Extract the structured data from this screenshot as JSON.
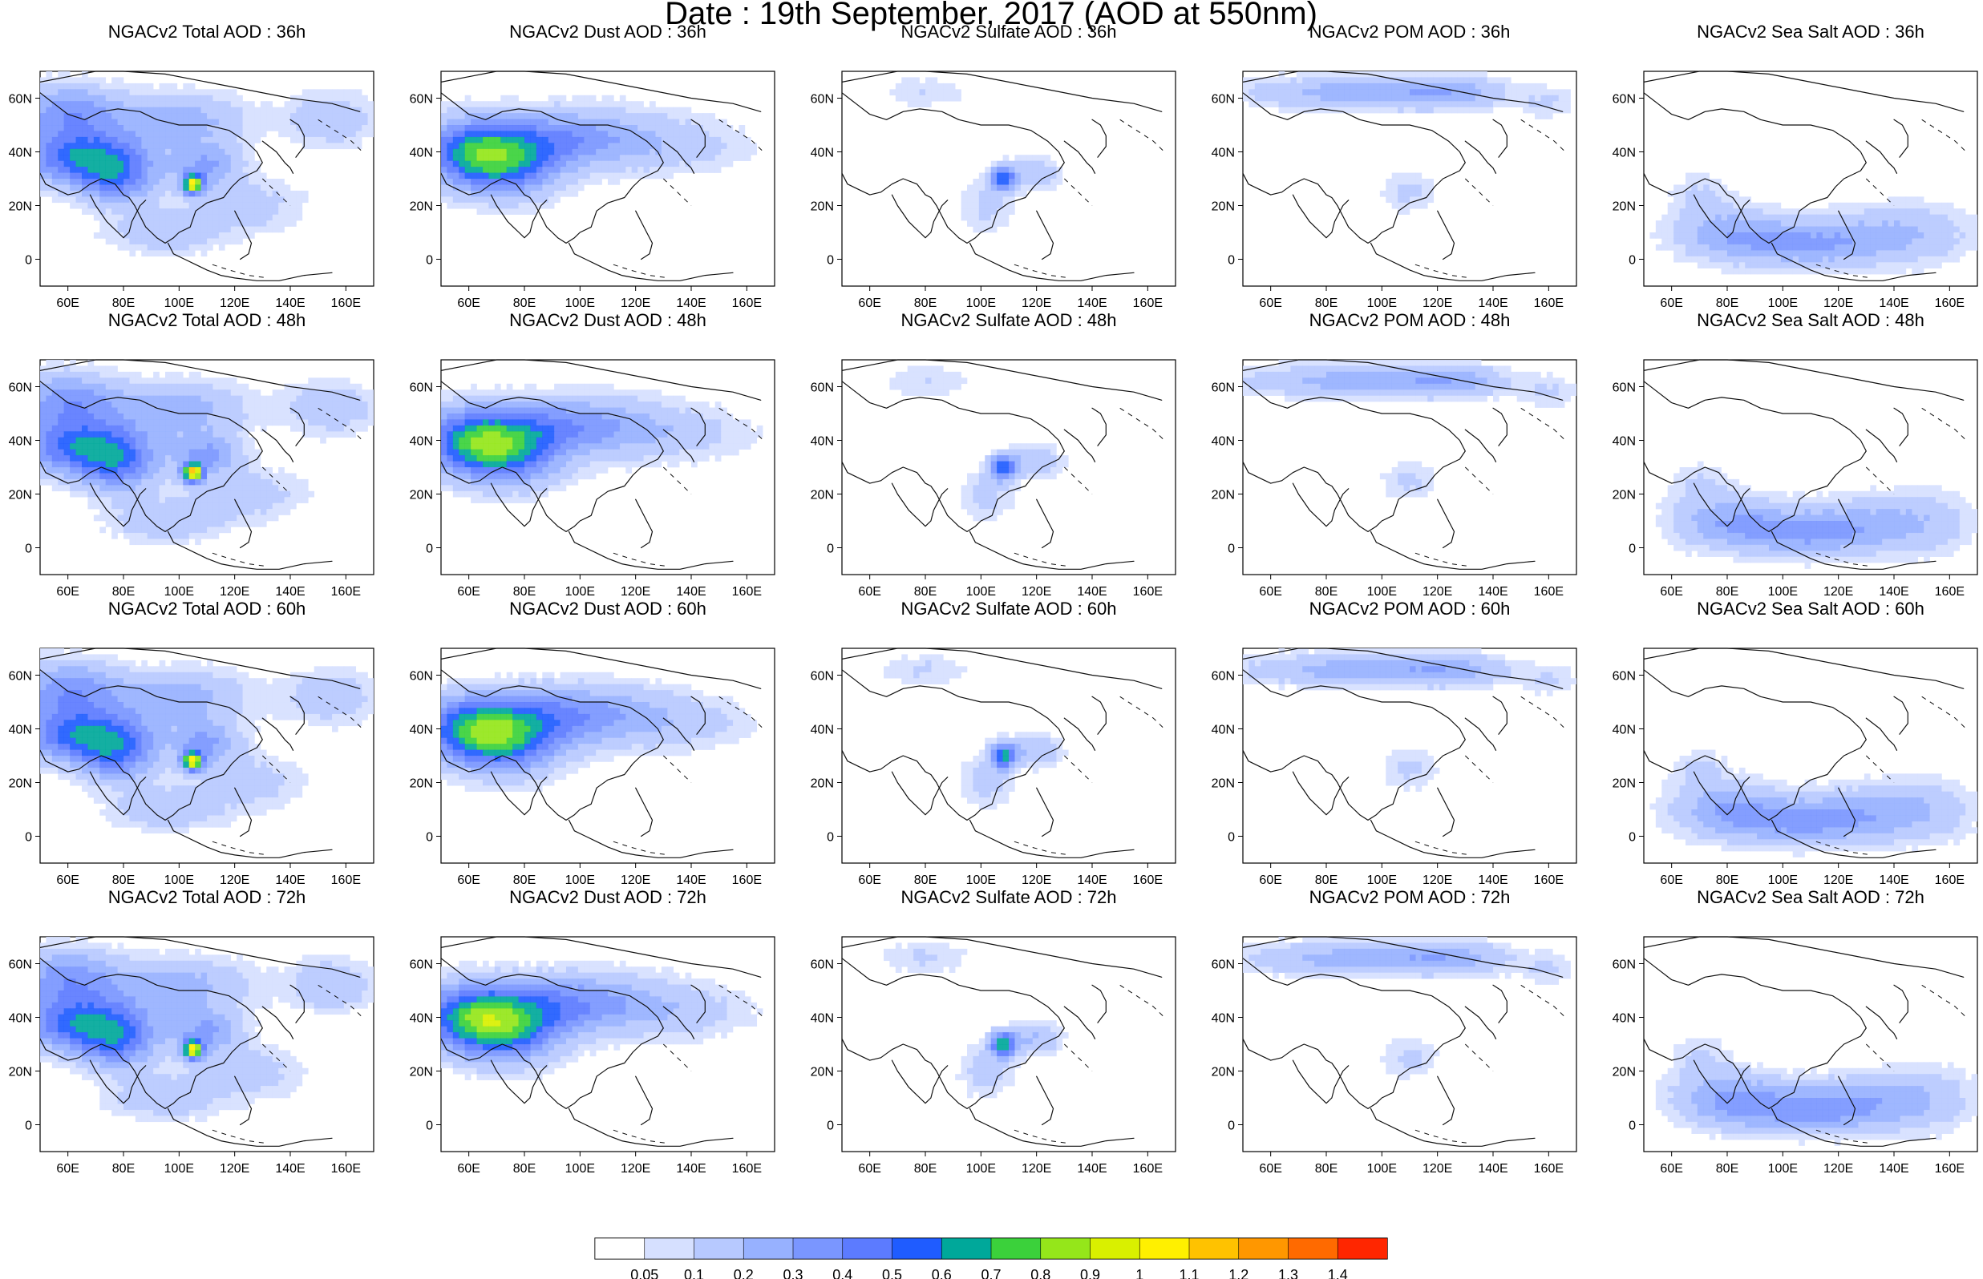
{
  "figure": {
    "title": "Date : 19th September, 2017 (AOD at 550nm)"
  },
  "axes": {
    "lon_ticks": [
      "60E",
      "80E",
      "100E",
      "120E",
      "140E",
      "160E"
    ],
    "lat_ticks": [
      "60N",
      "40N",
      "20N",
      "0"
    ]
  },
  "panels": [
    {
      "title": "NGACv2 Total AOD : 36h"
    },
    {
      "title": "NGACv2 Dust AOD : 36h"
    },
    {
      "title": "NGACv2 Sulfate AOD : 36h"
    },
    {
      "title": "NGACv2 POM AOD : 36h"
    },
    {
      "title": "NGACv2 Sea Salt AOD : 36h"
    },
    {
      "title": "NGACv2 Total AOD : 48h"
    },
    {
      "title": "NGACv2 Dust AOD : 48h"
    },
    {
      "title": "NGACv2 Sulfate AOD : 48h"
    },
    {
      "title": "NGACv2 POM AOD : 48h"
    },
    {
      "title": "NGACv2 Sea Salt AOD : 48h"
    },
    {
      "title": "NGACv2 Total AOD : 60h"
    },
    {
      "title": "NGACv2 Dust AOD : 60h"
    },
    {
      "title": "NGACv2 Sulfate AOD : 60h"
    },
    {
      "title": "NGACv2 POM AOD : 60h"
    },
    {
      "title": "NGACv2 Sea Salt AOD : 60h"
    },
    {
      "title": "NGACv2 Total AOD : 72h"
    },
    {
      "title": "NGACv2 Dust AOD : 72h"
    },
    {
      "title": "NGACv2 Sulfate AOD : 72h"
    },
    {
      "title": "NGACv2 POM AOD : 72h"
    },
    {
      "title": "NGACv2 Sea Salt  AOD : 72h"
    }
  ],
  "colorbar": {
    "labels": [
      "0.05",
      "0.1",
      "0.2",
      "0.3",
      "0.4",
      "0.5",
      "0.6",
      "0.7",
      "0.8",
      "0.9",
      "1",
      "1.1",
      "1.2",
      "1.3",
      "1.4"
    ],
    "colors": [
      "#ffffff",
      "#d6e0ff",
      "#b7c9ff",
      "#97b1ff",
      "#7a96ff",
      "#5c7bff",
      "#1f5cff",
      "#00a89a",
      "#3bd13b",
      "#95e61a",
      "#d9f000",
      "#fff000",
      "#ffc200",
      "#ff9700",
      "#ff6a00",
      "#ff2600"
    ]
  },
  "chart_data": {
    "type": "heatmap",
    "description": "Gridded aerosol optical depth (AOD at 550nm) fields over Asia (~50E–170E, ~10S–70N). Values are categorical by the shown colorbar thresholds.",
    "lon_range": [
      50,
      170
    ],
    "lat_range": [
      -10,
      70
    ]
  }
}
